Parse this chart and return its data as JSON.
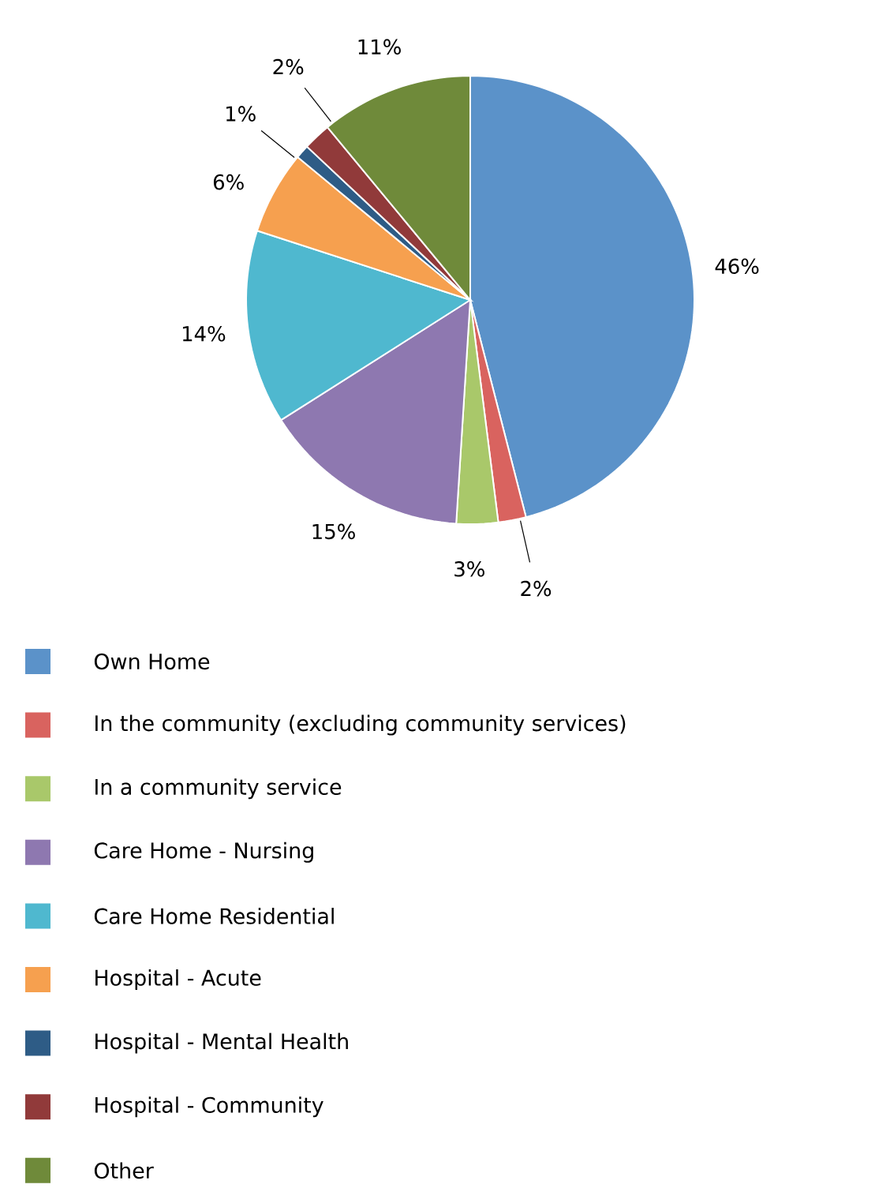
{
  "chart_data": {
    "type": "pie",
    "categories": [
      "Own Home",
      "In the community (excluding community services)",
      "In a community service",
      "Care Home - Nursing",
      "Care Home Residential",
      "Hospital - Acute",
      "Hospital - Mental Health",
      "Hospital - Community",
      "Other"
    ],
    "values": [
      46,
      2,
      3,
      15,
      14,
      6,
      1,
      2,
      11
    ],
    "colors": [
      "#5b92c9",
      "#d9635f",
      "#a9c86a",
      "#8e78b0",
      "#4fb8cf",
      "#f6a04f",
      "#2e5c86",
      "#913a3a",
      "#6f8a3a"
    ],
    "value_labels": [
      "46%",
      "2%",
      "3%",
      "15%",
      "14%",
      "6%",
      "1%",
      "2%",
      "11%"
    ],
    "legend": "bottom"
  }
}
